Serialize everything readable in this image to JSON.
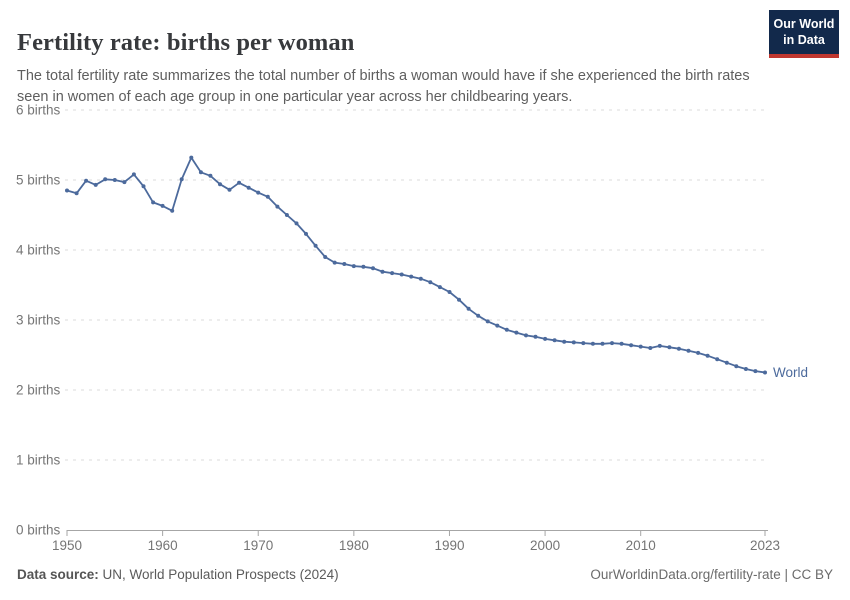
{
  "header": {
    "title": "Fertility rate: births per woman",
    "subtitle": "The total fertility rate summarizes the total number of births a woman would have if she experienced the birth rates seen in women of each age group in one particular year across her childbearing years.",
    "logo": {
      "line1": "Our World",
      "line2": "in Data"
    }
  },
  "chart_data": {
    "type": "line",
    "title": "Fertility rate: births per woman",
    "xlabel": "",
    "ylabel": "births",
    "xlim": [
      1950,
      2023
    ],
    "ylim": [
      0,
      6
    ],
    "grid": "horizontal-dashed",
    "legend_position": "end-of-line",
    "x_ticks": [
      1950,
      1960,
      1970,
      1980,
      1990,
      2000,
      2010,
      2023
    ],
    "y_tick_values": [
      0,
      1,
      2,
      3,
      4,
      5,
      6
    ],
    "y_tick_labels": [
      "0 births",
      "1 births",
      "2 births",
      "3 births",
      "4 births",
      "5 births",
      "6 births"
    ],
    "series": [
      {
        "name": "World",
        "color": "#4C6A9C",
        "x": [
          1950,
          1951,
          1952,
          1953,
          1954,
          1955,
          1956,
          1957,
          1958,
          1959,
          1960,
          1961,
          1962,
          1963,
          1964,
          1965,
          1966,
          1967,
          1968,
          1969,
          1970,
          1971,
          1972,
          1973,
          1974,
          1975,
          1976,
          1977,
          1978,
          1979,
          1980,
          1981,
          1982,
          1983,
          1984,
          1985,
          1986,
          1987,
          1988,
          1989,
          1990,
          1991,
          1992,
          1993,
          1994,
          1995,
          1996,
          1997,
          1998,
          1999,
          2000,
          2001,
          2002,
          2003,
          2004,
          2005,
          2006,
          2007,
          2008,
          2009,
          2010,
          2011,
          2012,
          2013,
          2014,
          2015,
          2016,
          2017,
          2018,
          2019,
          2020,
          2021,
          2022,
          2023
        ],
        "values": [
          4.85,
          4.81,
          4.99,
          4.93,
          5.01,
          5.0,
          4.97,
          5.08,
          4.91,
          4.68,
          4.63,
          4.56,
          5.01,
          5.32,
          5.11,
          5.06,
          4.94,
          4.86,
          4.96,
          4.89,
          4.82,
          4.76,
          4.62,
          4.5,
          4.38,
          4.23,
          4.06,
          3.9,
          3.82,
          3.8,
          3.77,
          3.76,
          3.74,
          3.69,
          3.67,
          3.65,
          3.62,
          3.59,
          3.54,
          3.47,
          3.4,
          3.29,
          3.16,
          3.06,
          2.98,
          2.92,
          2.86,
          2.82,
          2.78,
          2.76,
          2.73,
          2.71,
          2.69,
          2.68,
          2.67,
          2.66,
          2.66,
          2.67,
          2.66,
          2.64,
          2.62,
          2.6,
          2.63,
          2.61,
          2.59,
          2.56,
          2.53,
          2.49,
          2.44,
          2.39,
          2.34,
          2.3,
          2.27,
          2.25
        ]
      }
    ],
    "end_label": "World"
  },
  "footer": {
    "source_label": "Data source:",
    "source_text": " UN, World Population Prospects (2024)",
    "citation": "OurWorldinData.org/fertility-rate | CC BY"
  },
  "colors": {
    "line": "#4C6A9C",
    "grid": "#DBDBDB",
    "axis": "#A6A6A6",
    "tick_label": "#757575",
    "title": "#37393C",
    "subtitle": "#5E5E5E",
    "logo_bg": "#12294B",
    "logo_red": "#C0372F"
  }
}
